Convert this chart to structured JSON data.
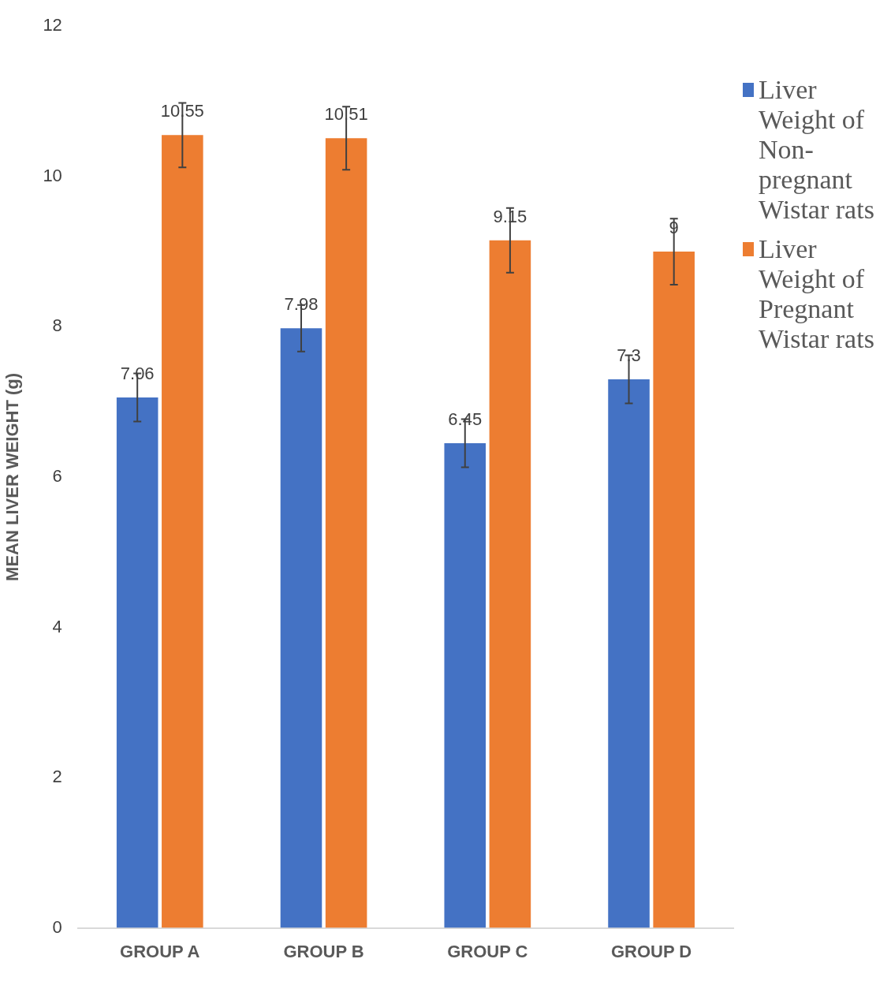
{
  "chart_data": {
    "type": "bar",
    "ylabel": "MEAN LIVER WEIGHT (g)",
    "categories": [
      "GROUP A",
      "GROUP B",
      "GROUP C",
      "GROUP D"
    ],
    "series": [
      {
        "name": "Liver Weight of Non-pregnant Wistar rats",
        "color": "#4472c4",
        "values": [
          7.06,
          7.98,
          6.45,
          7.3
        ],
        "errors": [
          0.32,
          0.31,
          0.32,
          0.32
        ]
      },
      {
        "name": "Liver Weight of Pregnant Wistar rats",
        "color": "#ed7d31",
        "values": [
          10.55,
          10.51,
          9.15,
          9
        ],
        "errors": [
          0.43,
          0.42,
          0.43,
          0.44
        ]
      }
    ],
    "ylim": [
      0,
      12
    ],
    "yticks": [
      0,
      2,
      4,
      6,
      8,
      10,
      12
    ],
    "grid": false,
    "legend": "right",
    "data_labels": true
  }
}
